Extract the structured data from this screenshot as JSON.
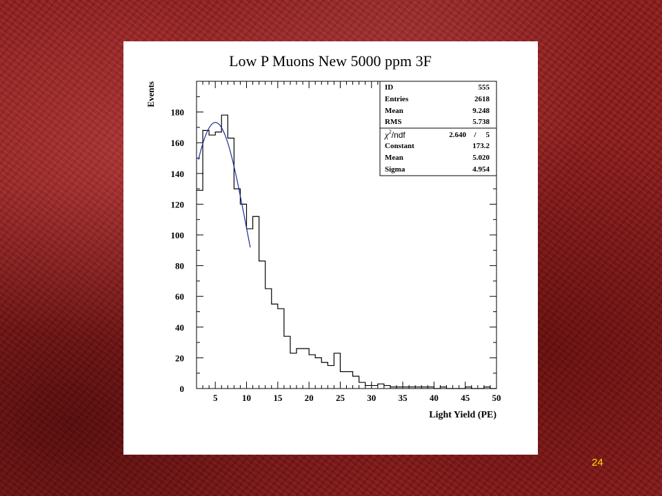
{
  "slide_number": "24",
  "colors": {
    "fit_line": "#1a2a9a",
    "histogram": "#000000",
    "slide_number": "#ffe000"
  },
  "stats_box": {
    "rows": [
      {
        "label": "ID",
        "value": "555"
      },
      {
        "label": "Entries",
        "value": "2618"
      },
      {
        "label": "Mean",
        "value": "9.248"
      },
      {
        "label": "RMS",
        "value": "5.738"
      }
    ],
    "fit_header": {
      "label_main": "χ",
      "label_sup": "2",
      "label_tail": "/ndf",
      "chi2": "2.640",
      "slash": "/",
      "ndf": "5"
    },
    "fit_rows": [
      {
        "label": "Constant",
        "value": "173.2"
      },
      {
        "label": "Mean",
        "value": "5.020"
      },
      {
        "label": "Sigma",
        "value": "4.954"
      }
    ]
  },
  "chart_data": {
    "type": "bar",
    "style": "step-histogram",
    "title": "Low P Muons New 5000 ppm 3F",
    "xlabel": "Light Yield (PE)",
    "ylabel": "Events",
    "xlim": [
      2,
      50
    ],
    "ylim": [
      0,
      200
    ],
    "x_ticks": [
      5,
      10,
      15,
      20,
      25,
      30,
      35,
      40,
      45,
      50
    ],
    "y_ticks": [
      0,
      20,
      40,
      60,
      80,
      100,
      120,
      140,
      160,
      180
    ],
    "bin_width": 1,
    "bin_edges_start": 2,
    "values": [
      129,
      168,
      165,
      167,
      178,
      163,
      130,
      120,
      104,
      112,
      83,
      65,
      55,
      52,
      34,
      23,
      26,
      26,
      22,
      20,
      17,
      15,
      23,
      11,
      11,
      8,
      4,
      2,
      2,
      3,
      2,
      1,
      1,
      1,
      1,
      1,
      1,
      1,
      0,
      1,
      0,
      0,
      0,
      1,
      0,
      0,
      1,
      0
    ],
    "fit": {
      "function": "gaussian",
      "constant": 173.2,
      "mean": 5.02,
      "sigma": 4.954,
      "range": [
        2.3,
        10.6
      ]
    }
  }
}
